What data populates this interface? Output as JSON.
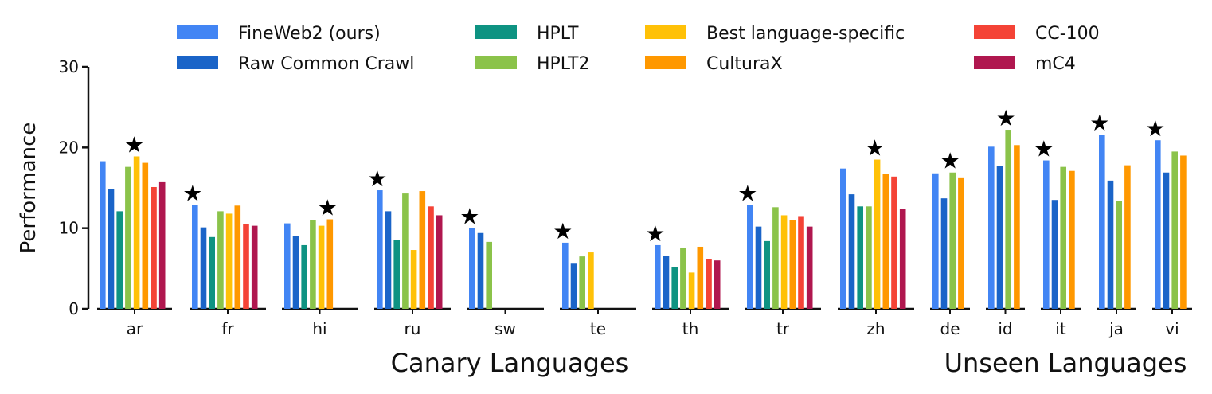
{
  "chart_data": {
    "type": "bar",
    "ylabel": "Performance",
    "ylim": [
      0,
      30
    ],
    "yticks": [
      0,
      10,
      20,
      30
    ],
    "groups": [
      {
        "label": "Canary Languages",
        "categories": [
          "ar",
          "fr",
          "hi",
          "ru",
          "sw",
          "te",
          "th",
          "tr",
          "zh"
        ]
      },
      {
        "label": "Unseen Languages",
        "categories": [
          "de",
          "id",
          "it",
          "ja",
          "vi"
        ]
      }
    ],
    "series": [
      {
        "name": "FineWeb2 (ours)",
        "color": "#4285f4",
        "values": {
          "ar": 18.3,
          "fr": 12.9,
          "hi": 10.6,
          "ru": 14.7,
          "sw": 10.0,
          "te": 8.2,
          "th": 7.9,
          "tr": 12.9,
          "zh": 17.4,
          "de": 16.8,
          "id": 20.1,
          "it": 18.4,
          "ja": 21.6,
          "vi": 20.9
        }
      },
      {
        "name": "Raw Common Crawl",
        "color": "#1a64c8",
        "values": {
          "ar": 14.9,
          "fr": 10.1,
          "hi": 9.0,
          "ru": 12.1,
          "sw": 9.4,
          "te": 5.6,
          "th": 6.6,
          "tr": 10.2,
          "zh": 14.2,
          "de": 13.7,
          "id": 17.7,
          "it": 13.5,
          "ja": 15.9,
          "vi": 16.9
        }
      },
      {
        "name": "HPLT",
        "color": "#0e9382",
        "values": {
          "ar": 12.1,
          "fr": 8.9,
          "hi": 7.9,
          "ru": 8.5,
          "sw": null,
          "te": null,
          "th": 5.2,
          "tr": 8.4,
          "zh": 12.7,
          "de": null,
          "id": null,
          "it": null,
          "ja": null,
          "vi": null
        }
      },
      {
        "name": "HPLT2",
        "color": "#8bc34a",
        "values": {
          "ar": 17.6,
          "fr": 12.1,
          "hi": 11.0,
          "ru": 14.3,
          "sw": 8.3,
          "te": 6.5,
          "th": 7.6,
          "tr": 12.6,
          "zh": 12.7,
          "de": 16.9,
          "id": 22.2,
          "it": 17.6,
          "ja": 13.4,
          "vi": 19.5
        }
      },
      {
        "name": "Best language-specific",
        "color": "#ffc107",
        "values": {
          "ar": 18.9,
          "fr": 11.8,
          "hi": 10.3,
          "ru": 7.3,
          "sw": null,
          "te": 7.0,
          "th": 4.5,
          "tr": 11.6,
          "zh": 18.5,
          "de": null,
          "id": null,
          "it": null,
          "ja": null,
          "vi": null
        }
      },
      {
        "name": "CulturaX",
        "color": "#ff9800",
        "values": {
          "ar": 18.1,
          "fr": 12.8,
          "hi": 11.1,
          "ru": 14.6,
          "sw": null,
          "te": null,
          "th": 7.7,
          "tr": 11.0,
          "zh": 16.7,
          "de": 16.2,
          "id": 20.3,
          "it": 17.1,
          "ja": 17.8,
          "vi": 19.0
        }
      },
      {
        "name": "CC-100",
        "color": "#f44336",
        "values": {
          "ar": 15.1,
          "fr": 10.5,
          "hi": null,
          "ru": 12.7,
          "sw": null,
          "te": null,
          "th": 6.2,
          "tr": 11.5,
          "zh": 16.4,
          "de": null,
          "id": null,
          "it": null,
          "ja": null,
          "vi": null
        }
      },
      {
        "name": "mC4",
        "color": "#b0174f",
        "values": {
          "ar": 15.7,
          "fr": 10.3,
          "hi": null,
          "ru": 11.6,
          "sw": null,
          "te": null,
          "th": 6.0,
          "tr": 10.2,
          "zh": 12.4,
          "de": null,
          "id": null,
          "it": null,
          "ja": null,
          "vi": null
        }
      }
    ],
    "best_markers": [
      {
        "category": "ar",
        "series": "Best language-specific"
      },
      {
        "category": "fr",
        "series": "FineWeb2 (ours)"
      },
      {
        "category": "hi",
        "series": "CulturaX"
      },
      {
        "category": "ru",
        "series": "FineWeb2 (ours)"
      },
      {
        "category": "sw",
        "series": "FineWeb2 (ours)"
      },
      {
        "category": "te",
        "series": "FineWeb2 (ours)"
      },
      {
        "category": "th",
        "series": "FineWeb2 (ours)"
      },
      {
        "category": "tr",
        "series": "FineWeb2 (ours)"
      },
      {
        "category": "zh",
        "series": "Best language-specific"
      },
      {
        "category": "de",
        "series": "HPLT2"
      },
      {
        "category": "id",
        "series": "HPLT2"
      },
      {
        "category": "it",
        "series": "FineWeb2 (ours)"
      },
      {
        "category": "ja",
        "series": "FineWeb2 (ours)"
      },
      {
        "category": "vi",
        "series": "FineWeb2 (ours)"
      }
    ],
    "marker_glyph": "★",
    "legend_position": "top",
    "grid": false
  }
}
